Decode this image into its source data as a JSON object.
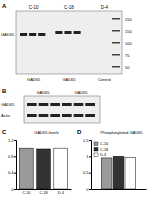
{
  "figure": {
    "A": {
      "label": "A",
      "lane_groups": [
        "C-10",
        "C-18",
        "D-4"
      ],
      "band_label": "GAD65",
      "markers": [
        250,
        150,
        100,
        75,
        50
      ],
      "bottom_labels": [
        "GAD65",
        "GAD65",
        "Control"
      ]
    },
    "B": {
      "label": "B",
      "lanes": [
        "GAD65",
        "GAD65"
      ],
      "rows": [
        "GAD65",
        "Actin"
      ]
    },
    "C": {
      "label": "C"
    },
    "D": {
      "label": "D"
    }
  },
  "chart_data": [
    {
      "type": "bar",
      "title": "GAD65 levels",
      "categories": [
        "C-10",
        "C-18",
        "D-4"
      ],
      "values": [
        1.0,
        0.98,
        1.0
      ],
      "colors": [
        "#9a9a9a",
        "#333333",
        "#ffffff"
      ],
      "ylim": [
        0,
        1.2
      ],
      "yticks": [
        0,
        0.4,
        0.8,
        1.2
      ]
    },
    {
      "type": "bar",
      "title": "Phosphorylated GAD65",
      "categories": [
        null
      ],
      "series": [
        {
          "name": "C-10",
          "color": "#9a9a9a",
          "values": [
            0.95
          ]
        },
        {
          "name": "C-18",
          "color": "#333333",
          "values": [
            1.0
          ]
        },
        {
          "name": "D-4",
          "color": "#ffffff",
          "values": [
            0.97
          ]
        }
      ],
      "ylim": [
        0,
        1.5
      ],
      "yticks": [
        0,
        0.5,
        1,
        1.5
      ],
      "legend": "upper left"
    }
  ]
}
